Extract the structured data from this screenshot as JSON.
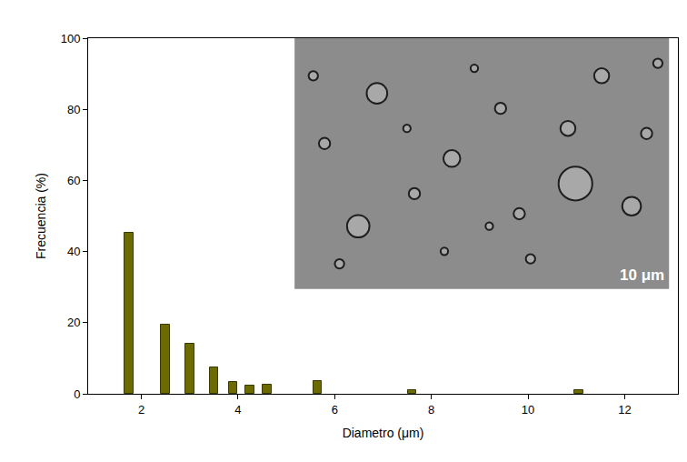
{
  "chart_data": {
    "type": "bar",
    "x": [
      1.75,
      2.5,
      3.0,
      3.5,
      3.9,
      4.25,
      4.6,
      5.65,
      7.6,
      11.05
    ],
    "values": [
      45.2,
      19.4,
      14.1,
      7.3,
      3.2,
      2.2,
      2.6,
      3.6,
      1.1,
      1.1
    ],
    "color": "#6b6b00",
    "xlabel": "Diametro (μm)",
    "ylabel": "Frecuencia (%)",
    "xlim": [
      0.9,
      13.1
    ],
    "ylim": [
      0,
      100
    ],
    "xticks": [
      2,
      4,
      6,
      8,
      10,
      12
    ],
    "yticks": [
      0,
      20,
      40,
      60,
      80,
      100
    ],
    "grid": false,
    "annotations": [
      {
        "text": "10 μm"
      }
    ]
  }
}
